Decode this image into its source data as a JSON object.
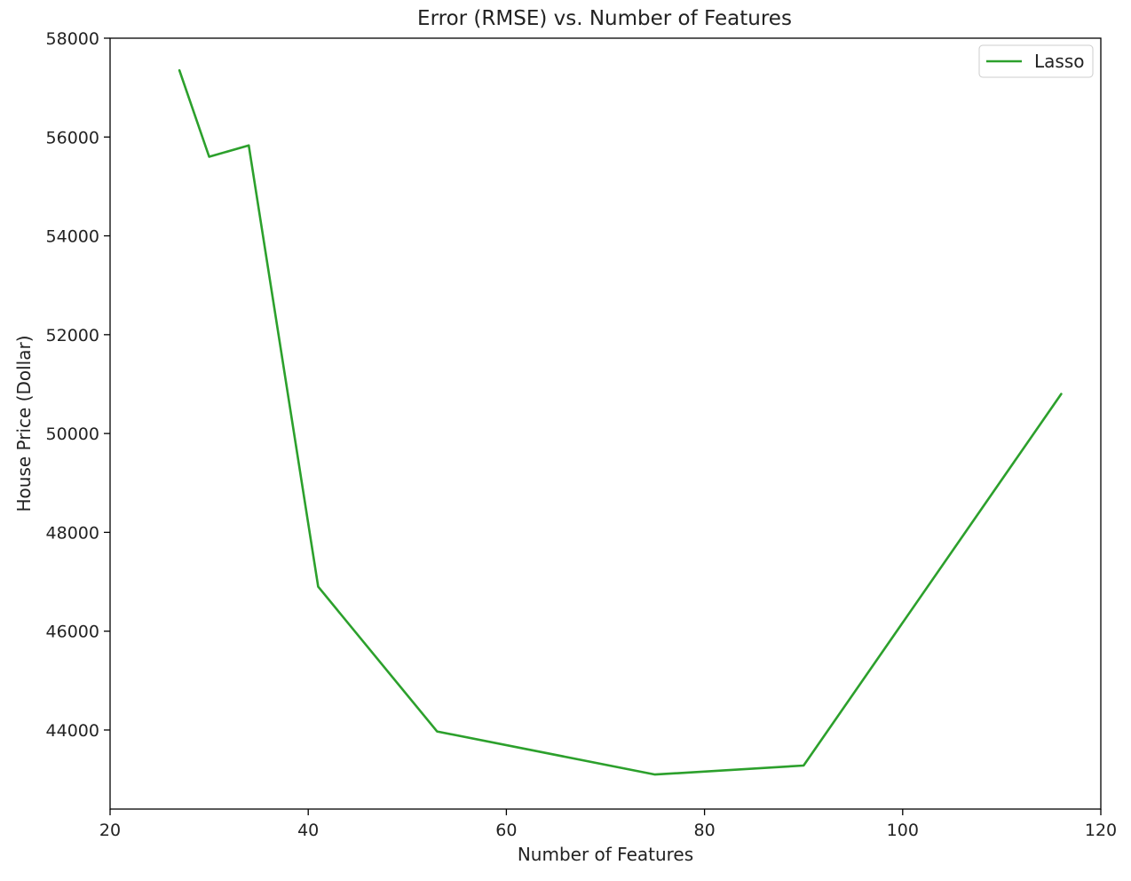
{
  "chart_data": {
    "type": "line",
    "title": "Error (RMSE) vs. Number of Features",
    "xlabel": "Number of Features",
    "ylabel": "House Price (Dollar)",
    "xlim": [
      20,
      120
    ],
    "ylim": [
      42400,
      58000
    ],
    "xticks": [
      20,
      40,
      60,
      80,
      100,
      120
    ],
    "yticks": [
      44000,
      46000,
      48000,
      50000,
      52000,
      54000,
      56000,
      58000
    ],
    "grid": false,
    "legend_position": "top-right",
    "series": [
      {
        "name": "Lasso",
        "color": "#2ca02c",
        "x": [
          27,
          30,
          34,
          41,
          53,
          75,
          90,
          116
        ],
        "y": [
          57350,
          55600,
          55830,
          46900,
          43970,
          43100,
          43280,
          50800
        ]
      }
    ]
  }
}
